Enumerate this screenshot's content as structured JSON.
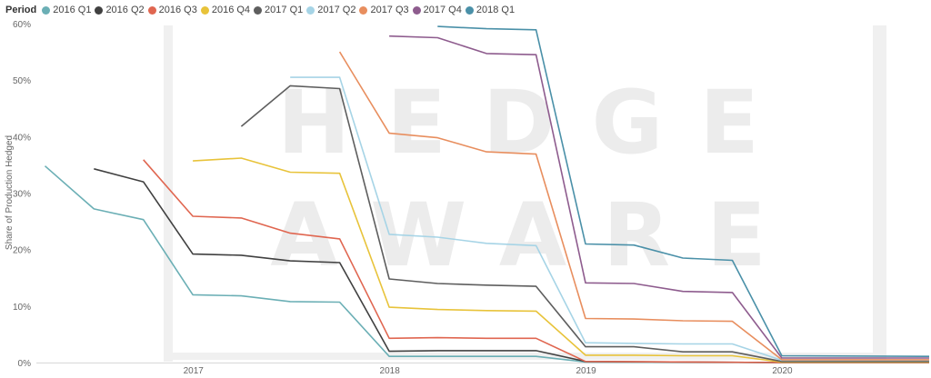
{
  "chart_data": {
    "type": "line",
    "title": "",
    "legend_title": "Period",
    "legend_position": "top-left",
    "ylabel": "Share of Production Hedged",
    "xlabel": "",
    "x_ticks": [
      "2017",
      "2018",
      "2019",
      "2020"
    ],
    "y_ticks": [
      "0%",
      "10%",
      "20%",
      "30%",
      "40%",
      "50%",
      "60%"
    ],
    "ylim": [
      0,
      60
    ],
    "xlim": [
      "2016-03-15",
      "2020-09-30"
    ],
    "grid": false,
    "watermark": [
      "HEDGE",
      "AWARE"
    ],
    "series": [
      {
        "name": "2016 Q1",
        "color": "#6bafb5",
        "points": [
          [
            "2016-03-31",
            34.8
          ],
          [
            "2016-06-30",
            27.2
          ],
          [
            "2016-09-30",
            25.3
          ],
          [
            "2016-12-31",
            12.0
          ],
          [
            "2017-03-31",
            11.8
          ],
          [
            "2017-06-30",
            10.8
          ],
          [
            "2017-09-30",
            10.7
          ],
          [
            "2017-12-31",
            1.1
          ],
          [
            "2018-03-31",
            1.1
          ],
          [
            "2018-06-30",
            1.1
          ],
          [
            "2018-09-30",
            1.1
          ],
          [
            "2018-12-31",
            0.1
          ],
          [
            "2019-12-31",
            0.0
          ],
          [
            "2020-09-30",
            0.0
          ]
        ]
      },
      {
        "name": "2016 Q2",
        "color": "#404040",
        "points": [
          [
            "2016-06-30",
            34.3
          ],
          [
            "2016-09-30",
            32.0
          ],
          [
            "2016-12-31",
            19.2
          ],
          [
            "2017-03-31",
            19.0
          ],
          [
            "2017-06-30",
            18.0
          ],
          [
            "2017-09-30",
            17.7
          ],
          [
            "2017-12-31",
            2.0
          ],
          [
            "2018-03-31",
            2.1
          ],
          [
            "2018-06-30",
            2.1
          ],
          [
            "2018-09-30",
            2.1
          ],
          [
            "2018-12-31",
            0.2
          ],
          [
            "2019-12-31",
            0.0
          ],
          [
            "2020-09-30",
            0.0
          ]
        ]
      },
      {
        "name": "2016 Q3",
        "color": "#e06650",
        "points": [
          [
            "2016-09-30",
            35.9
          ],
          [
            "2016-12-31",
            25.9
          ],
          [
            "2017-03-31",
            25.6
          ],
          [
            "2017-06-30",
            22.9
          ],
          [
            "2017-09-30",
            21.9
          ],
          [
            "2017-12-31",
            4.3
          ],
          [
            "2018-03-31",
            4.4
          ],
          [
            "2018-06-30",
            4.3
          ],
          [
            "2018-09-30",
            4.3
          ],
          [
            "2018-12-31",
            0.2
          ],
          [
            "2019-12-31",
            0.0
          ],
          [
            "2020-09-30",
            0.0
          ]
        ]
      },
      {
        "name": "2016 Q4",
        "color": "#e8c33a",
        "points": [
          [
            "2016-12-31",
            35.7
          ],
          [
            "2017-03-31",
            36.2
          ],
          [
            "2017-06-30",
            33.7
          ],
          [
            "2017-09-30",
            33.5
          ],
          [
            "2017-12-31",
            9.8
          ],
          [
            "2018-03-31",
            9.4
          ],
          [
            "2018-06-30",
            9.2
          ],
          [
            "2018-09-30",
            9.1
          ],
          [
            "2018-12-31",
            1.3
          ],
          [
            "2019-03-31",
            1.3
          ],
          [
            "2019-06-30",
            1.2
          ],
          [
            "2019-09-30",
            1.2
          ],
          [
            "2019-12-31",
            0.1
          ],
          [
            "2020-09-30",
            0.1
          ]
        ]
      },
      {
        "name": "2017 Q1",
        "color": "#5e5e5e",
        "points": [
          [
            "2017-03-31",
            41.8
          ],
          [
            "2017-06-30",
            49.0
          ],
          [
            "2017-09-30",
            48.5
          ],
          [
            "2017-12-31",
            14.8
          ],
          [
            "2018-03-31",
            14.0
          ],
          [
            "2018-06-30",
            13.7
          ],
          [
            "2018-09-30",
            13.5
          ],
          [
            "2018-12-31",
            2.8
          ],
          [
            "2019-03-31",
            2.8
          ],
          [
            "2019-06-30",
            1.9
          ],
          [
            "2019-09-30",
            1.9
          ],
          [
            "2019-12-31",
            0.2
          ],
          [
            "2020-09-30",
            0.2
          ]
        ]
      },
      {
        "name": "2017 Q2",
        "color": "#a6d4e6",
        "points": [
          [
            "2017-06-30",
            50.5
          ],
          [
            "2017-09-30",
            50.5
          ],
          [
            "2017-12-31",
            22.7
          ],
          [
            "2018-03-31",
            22.2
          ],
          [
            "2018-06-30",
            21.1
          ],
          [
            "2018-09-30",
            20.7
          ],
          [
            "2018-12-31",
            3.5
          ],
          [
            "2019-03-31",
            3.4
          ],
          [
            "2019-06-30",
            3.3
          ],
          [
            "2019-09-30",
            3.3
          ],
          [
            "2019-12-31",
            0.4
          ],
          [
            "2020-09-30",
            0.4
          ]
        ]
      },
      {
        "name": "2017 Q3",
        "color": "#e88e5e",
        "points": [
          [
            "2017-09-30",
            55.0
          ],
          [
            "2017-12-31",
            40.6
          ],
          [
            "2018-03-31",
            39.8
          ],
          [
            "2018-06-30",
            37.3
          ],
          [
            "2018-09-30",
            36.9
          ],
          [
            "2018-12-31",
            7.8
          ],
          [
            "2019-03-31",
            7.7
          ],
          [
            "2019-06-30",
            7.4
          ],
          [
            "2019-09-30",
            7.3
          ],
          [
            "2019-12-31",
            0.5
          ],
          [
            "2020-09-30",
            0.5
          ]
        ]
      },
      {
        "name": "2017 Q4",
        "color": "#8e5c8e",
        "points": [
          [
            "2017-12-31",
            57.8
          ],
          [
            "2018-03-31",
            57.5
          ],
          [
            "2018-06-30",
            54.7
          ],
          [
            "2018-09-30",
            54.5
          ],
          [
            "2018-12-31",
            14.1
          ],
          [
            "2019-03-31",
            14.0
          ],
          [
            "2019-06-30",
            12.6
          ],
          [
            "2019-09-30",
            12.4
          ],
          [
            "2019-12-31",
            0.8
          ],
          [
            "2020-09-30",
            0.8
          ]
        ]
      },
      {
        "name": "2018 Q1",
        "color": "#4a90a8",
        "points": [
          [
            "2018-03-31",
            59.5
          ],
          [
            "2018-06-30",
            59.1
          ],
          [
            "2018-09-30",
            58.9
          ],
          [
            "2018-12-31",
            21.0
          ],
          [
            "2019-03-31",
            20.8
          ],
          [
            "2019-06-30",
            18.5
          ],
          [
            "2019-09-30",
            18.1
          ],
          [
            "2019-12-31",
            1.2
          ],
          [
            "2020-09-30",
            1.1
          ]
        ]
      }
    ]
  }
}
